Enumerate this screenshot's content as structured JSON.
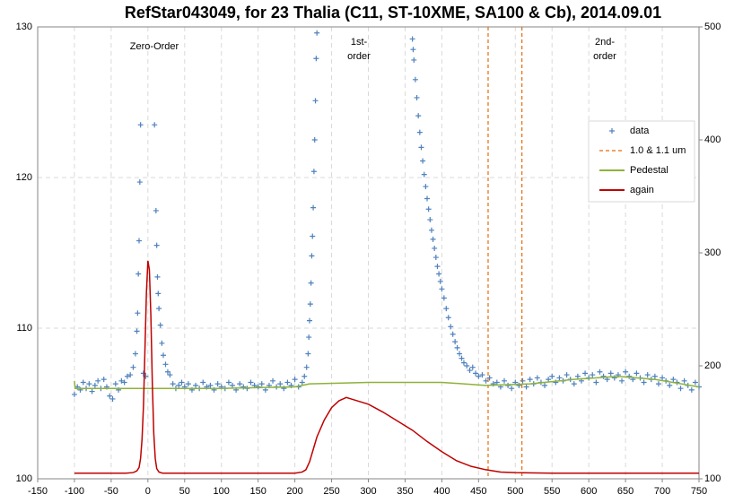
{
  "chart_data": {
    "type": "scatter",
    "title": "RefStar043049, for 23 Thalia (C11, ST-10XME, SA100 & Cb), 2014.09.01",
    "annotations": [
      [
        "Zero-Order"
      ],
      [
        "1st-",
        "order"
      ],
      [
        "2nd-",
        "order"
      ]
    ],
    "xlim": [
      -150,
      750
    ],
    "xticks": [
      -150,
      -100,
      -50,
      0,
      50,
      100,
      150,
      200,
      250,
      300,
      350,
      400,
      450,
      500,
      550,
      600,
      650,
      700,
      750
    ],
    "ylim": [
      100,
      130
    ],
    "yticks": [
      100,
      110,
      120,
      130
    ],
    "y2lim": [
      100,
      500
    ],
    "y2ticks": [
      100,
      200,
      300,
      400,
      500
    ],
    "grid": true,
    "legend": "right",
    "series": [
      {
        "name": "data",
        "type": "scatter",
        "color": "#4f81bd",
        "x": [
          -100,
          -96,
          -92,
          -88,
          -84,
          -80,
          -76,
          -72,
          -68,
          -64,
          -60,
          -56,
          -52,
          -48,
          -44,
          -40,
          -36,
          -32,
          -28,
          -24,
          -20,
          -17,
          -15,
          -14,
          -13,
          -12,
          -11,
          -10,
          -6,
          -3,
          9,
          11,
          12,
          13,
          14,
          15,
          17,
          19,
          21,
          24,
          27,
          30,
          34,
          38,
          42,
          46,
          50,
          55,
          60,
          65,
          70,
          75,
          80,
          85,
          90,
          95,
          100,
          105,
          110,
          115,
          120,
          125,
          130,
          135,
          140,
          145,
          150,
          155,
          160,
          165,
          170,
          175,
          180,
          185,
          190,
          195,
          200,
          205,
          210,
          213,
          216,
          218,
          219,
          220,
          221,
          222,
          223,
          224,
          225,
          226,
          227,
          228,
          229,
          230,
          360,
          361,
          362,
          364,
          366,
          368,
          370,
          372,
          374,
          376,
          378,
          380,
          382,
          384,
          386,
          388,
          390,
          392,
          394,
          396,
          398,
          400,
          403,
          406,
          409,
          412,
          415,
          418,
          421,
          424,
          427,
          430,
          434,
          438,
          442,
          446,
          450,
          455,
          460,
          465,
          470,
          475,
          480,
          485,
          490,
          495,
          500,
          505,
          510,
          515,
          520,
          525,
          530,
          535,
          540,
          545,
          550,
          555,
          560,
          565,
          570,
          575,
          580,
          585,
          590,
          595,
          600,
          605,
          610,
          615,
          620,
          625,
          630,
          635,
          640,
          645,
          650,
          655,
          660,
          665,
          670,
          675,
          680,
          685,
          690,
          695,
          700,
          705,
          710,
          715,
          720,
          725,
          730,
          735,
          740,
          745,
          750
        ],
        "values": [
          105.6,
          106.1,
          105.9,
          106.4,
          106.0,
          106.3,
          105.8,
          106.2,
          106.5,
          106.0,
          106.6,
          106.1,
          105.5,
          105.3,
          106.3,
          105.9,
          106.5,
          106.4,
          106.8,
          106.9,
          107.4,
          108.3,
          109.8,
          111.0,
          113.6,
          115.8,
          119.7,
          123.5,
          107.0,
          106.8,
          123.5,
          117.8,
          115.5,
          113.4,
          112.3,
          111.3,
          110.2,
          109.0,
          108.2,
          107.6,
          107.1,
          106.9,
          106.3,
          106.0,
          106.2,
          106.4,
          106.1,
          106.3,
          105.9,
          106.2,
          106.0,
          106.4,
          106.1,
          106.2,
          105.9,
          106.3,
          106.1,
          106.0,
          106.4,
          106.2,
          105.9,
          106.3,
          106.1,
          106.0,
          106.4,
          106.2,
          106.1,
          106.3,
          105.9,
          106.2,
          106.5,
          106.1,
          106.3,
          106.0,
          106.4,
          106.2,
          106.6,
          106.1,
          106.4,
          106.8,
          107.4,
          108.3,
          109.4,
          110.5,
          111.6,
          113.0,
          114.8,
          116.1,
          118.0,
          120.4,
          122.5,
          125.1,
          127.9,
          129.6,
          129.2,
          128.5,
          127.8,
          126.5,
          125.3,
          124.1,
          123.0,
          122.0,
          121.1,
          120.2,
          119.4,
          118.6,
          117.9,
          117.2,
          116.5,
          115.9,
          115.3,
          114.7,
          114.1,
          113.6,
          113.1,
          112.6,
          112.0,
          111.3,
          110.7,
          110.1,
          109.6,
          109.1,
          108.7,
          108.3,
          108.0,
          107.7,
          107.5,
          107.2,
          107.4,
          107.0,
          106.8,
          106.9,
          106.5,
          106.7,
          106.3,
          106.4,
          106.1,
          106.5,
          106.2,
          106.0,
          106.4,
          106.2,
          106.5,
          106.1,
          106.6,
          106.3,
          106.7,
          106.4,
          106.2,
          106.6,
          106.8,
          106.4,
          106.7,
          106.5,
          106.9,
          106.6,
          106.3,
          106.8,
          106.5,
          107.0,
          106.7,
          106.9,
          106.4,
          107.1,
          106.8,
          106.6,
          107.0,
          106.7,
          106.9,
          106.5,
          107.1,
          106.8,
          106.6,
          107.0,
          106.7,
          106.4,
          106.9,
          106.6,
          106.8,
          106.3,
          106.7,
          106.5,
          106.2,
          106.6,
          106.4,
          106.0,
          106.5,
          106.2,
          105.9,
          106.4,
          106.1
        ]
      },
      {
        "name": "1.0 & 1.1 um",
        "type": "vline",
        "color": "#e46c0a",
        "x": [
          463,
          509
        ]
      },
      {
        "name": "Pedestal",
        "type": "line",
        "color": "#8db33a",
        "x": [
          -100,
          -99,
          0,
          100,
          200,
          220,
          300,
          400,
          460,
          520,
          580,
          640,
          690,
          750
        ],
        "values": [
          106.5,
          106.0,
          106.0,
          106.0,
          106.1,
          106.3,
          106.4,
          106.4,
          106.2,
          106.3,
          106.6,
          106.8,
          106.6,
          106.1
        ]
      },
      {
        "name": "again",
        "type": "line",
        "axis": "y2",
        "color": "#c00000",
        "x": [
          -100,
          -60,
          -30,
          -20,
          -15,
          -12,
          -10,
          -8,
          -6,
          -4,
          -2,
          0,
          2,
          4,
          6,
          8,
          10,
          12,
          15,
          20,
          50,
          100,
          150,
          200,
          210,
          215,
          220,
          225,
          230,
          240,
          250,
          260,
          270,
          280,
          290,
          300,
          320,
          340,
          360,
          380,
          400,
          420,
          440,
          460,
          480,
          500,
          550,
          600,
          650,
          700,
          750
        ],
        "values": [
          105,
          105,
          105,
          105.5,
          107,
          110,
          118,
          135,
          165,
          215,
          265,
          293,
          285,
          245,
          185,
          140,
          118,
          109,
          106,
          105,
          105,
          105,
          105,
          105,
          106,
          108,
          115,
          126,
          137,
          152,
          163,
          169,
          172,
          170,
          168,
          166,
          159,
          151,
          143,
          133,
          124,
          116,
          111,
          108,
          106,
          105.5,
          105,
          105,
          105,
          105,
          105
        ]
      }
    ]
  }
}
